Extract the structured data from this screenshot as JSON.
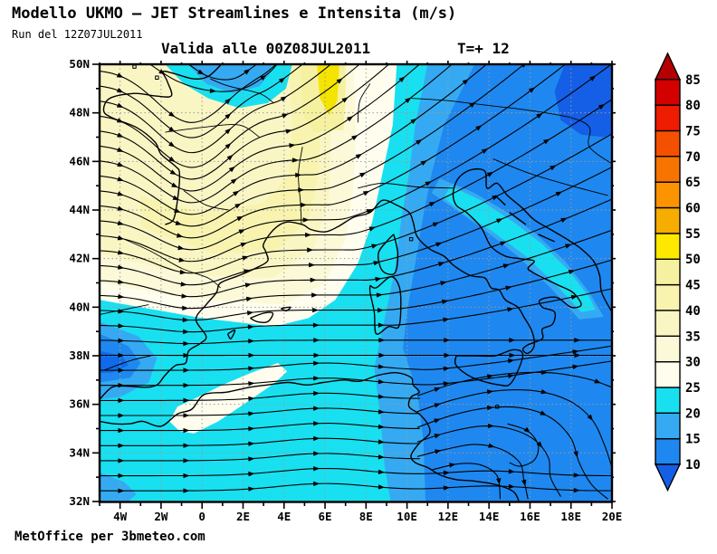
{
  "header": {
    "title": "Modello UKMO — JET Streamlines e Intensita (m/s)",
    "run": "Run del 12Z07JUL2011",
    "valid": "Valida alle 00Z08JUL2011",
    "lead": "T=+ 12"
  },
  "footer": {
    "credit": "MetOffice per 3bmeteo.com"
  },
  "axes": {
    "x_labels": [
      "4W",
      "2W",
      "0",
      "2E",
      "4E",
      "6E",
      "8E",
      "10E",
      "12E",
      "14E",
      "16E",
      "18E",
      "20E"
    ],
    "y_labels": [
      "50N",
      "48N",
      "46N",
      "44N",
      "42N",
      "40N",
      "38N",
      "36N",
      "34N",
      "32N"
    ]
  },
  "colorbar": {
    "labels_top_to_bottom": [
      "85",
      "80",
      "75",
      "70",
      "65",
      "60",
      "55",
      "50",
      "45",
      "40",
      "35",
      "30",
      "25",
      "20",
      "15",
      "10"
    ],
    "segment_colors_bottom_to_top": [
      "#1e88f0",
      "#35aaf2",
      "#18e0f0",
      "#fffdee",
      "#fcf9d8",
      "#faf6c4",
      "#f8f4b0",
      "#f6f1a0",
      "#ffe800",
      "#f7ac00",
      "#fb9400",
      "#f87400",
      "#f55000",
      "#ee1c00",
      "#d40000"
    ],
    "arrow_bottom_color": "#145fe6",
    "arrow_top_color": "#b40000"
  },
  "map_palette": {
    "below10": "#145fe6",
    "v10_15": "#1e88f0",
    "v15_20": "#35aaf2",
    "v20_25": "#18e0f0",
    "v25_30": "#fffdee",
    "v30_35": "#fcf9d8",
    "v35_40": "#faf6c4",
    "v40_45": "#f8f4b0",
    "v45_50": "#f6f1a0",
    "v50_55": "#f5e400",
    "dark_blue": "#0f6aec",
    "grid": "#9a9a9a",
    "line": "#000000"
  }
}
